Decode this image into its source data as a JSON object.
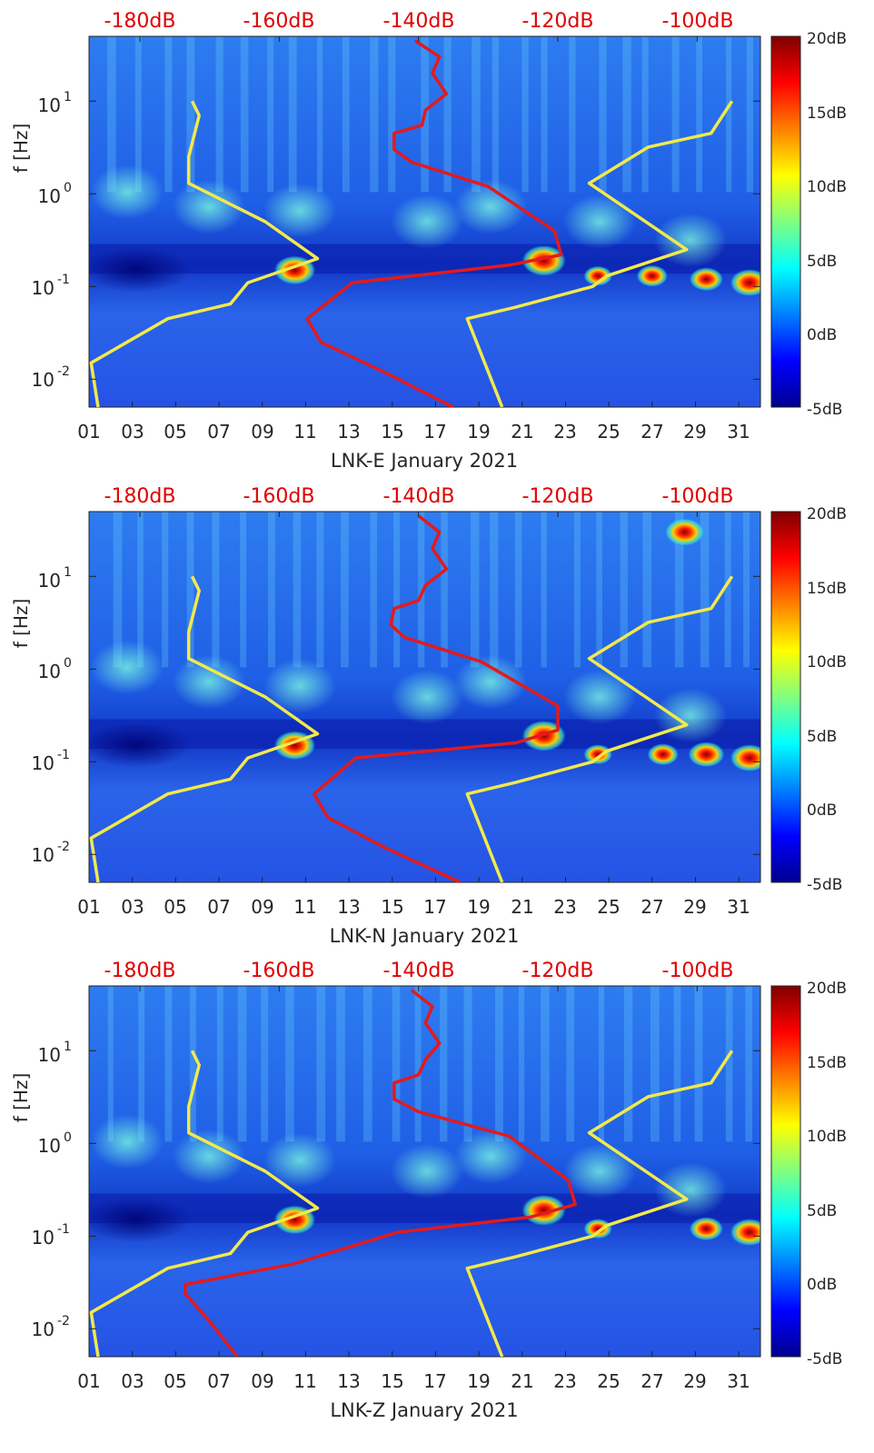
{
  "figure": {
    "colorbar_labels": [
      "20dB",
      "15dB",
      "10dB",
      "5dB",
      "0dB",
      "-5dB"
    ]
  },
  "colors": {
    "red_curve": "#e31a1c",
    "yellow_curve": "#f2e94b",
    "top_axis_text": "#e00000",
    "background": "#2a5fe8"
  },
  "chart_data": [
    {
      "type": "heatmap",
      "title": "LNK-E January 2021",
      "xlabel": "LNK-E January 2021",
      "ylabel": "f [Hz]",
      "x_ticks": [
        "01",
        "03",
        "05",
        "07",
        "09",
        "11",
        "13",
        "15",
        "17",
        "19",
        "21",
        "23",
        "25",
        "27",
        "29",
        "31"
      ],
      "y_ticks": [
        "10^-2",
        "10^-1",
        "10^0",
        "10^1"
      ],
      "top_ticks": [
        "-180dB",
        "-160dB",
        "-140dB",
        "-120dB",
        "-100dB"
      ],
      "colorbar": {
        "min": -5,
        "max": 20,
        "unit": "dB",
        "ticks": [
          "20dB",
          "15dB",
          "10dB",
          "5dB",
          "0dB",
          "-5dB"
        ]
      },
      "xlim": [
        1,
        32
      ],
      "ylim": [
        0.005,
        50
      ],
      "hot_spots": [
        {
          "day": 10.5,
          "f": 0.15,
          "dB": 19
        },
        {
          "day": 22.0,
          "f": 0.19,
          "dB": 20
        },
        {
          "day": 24.5,
          "f": 0.13,
          "dB": 14
        },
        {
          "day": 27.0,
          "f": 0.13,
          "dB": 15
        },
        {
          "day": 29.5,
          "f": 0.12,
          "dB": 16
        },
        {
          "day": 31.5,
          "f": 0.11,
          "dB": 18
        }
      ],
      "series": [
        {
          "name": "red-level-curve",
          "color": "#e31a1c",
          "x_db": [
            -140.5,
            -137,
            -138,
            -136,
            -139,
            -139.5,
            -143.5,
            -143.5,
            -141,
            -130,
            -120.5,
            -119.5,
            -127,
            -149.5,
            -156,
            -154,
            -145,
            -135
          ],
          "f": [
            45,
            30,
            20,
            12,
            8,
            5.5,
            4.5,
            3.0,
            2.2,
            1.2,
            0.4,
            0.22,
            0.17,
            0.11,
            0.045,
            0.025,
            0.012,
            0.005
          ]
        },
        {
          "name": "yellow-reference-curve",
          "color": "#f2e94b",
          "x_db": [
            -172.5,
            -171.5,
            -173,
            -173,
            -162,
            -154.5,
            -164.5,
            -167,
            -176,
            -187,
            -186
          ],
          "f": [
            10,
            7,
            2.5,
            1.3,
            0.5,
            0.2,
            0.11,
            0.065,
            0.045,
            0.015,
            0.005
          ]
        },
        {
          "name": "yellow-reference-curve-2",
          "color": "#f2e94b",
          "x_db": [
            -95,
            -98,
            -107,
            -115.5,
            -101.5,
            -113,
            -115,
            -126,
            -133,
            -128
          ],
          "f": [
            10,
            4.5,
            3.2,
            1.3,
            0.25,
            0.13,
            0.1,
            0.06,
            0.045,
            0.005
          ]
        }
      ]
    },
    {
      "type": "heatmap",
      "title": "LNK-N January 2021",
      "xlabel": "LNK-N January 2021",
      "ylabel": "f [Hz]",
      "x_ticks": [
        "01",
        "03",
        "05",
        "07",
        "09",
        "11",
        "13",
        "15",
        "17",
        "19",
        "21",
        "23",
        "25",
        "27",
        "29",
        "31"
      ],
      "y_ticks": [
        "10^-2",
        "10^-1",
        "10^0",
        "10^1"
      ],
      "top_ticks": [
        "-180dB",
        "-160dB",
        "-140dB",
        "-120dB",
        "-100dB"
      ],
      "colorbar": {
        "min": -5,
        "max": 20,
        "unit": "dB",
        "ticks": [
          "20dB",
          "15dB",
          "10dB",
          "5dB",
          "0dB",
          "-5dB"
        ]
      },
      "xlim": [
        1,
        32
      ],
      "ylim": [
        0.005,
        50
      ],
      "hot_spots": [
        {
          "day": 10.5,
          "f": 0.15,
          "dB": 19
        },
        {
          "day": 22.0,
          "f": 0.19,
          "dB": 20
        },
        {
          "day": 24.5,
          "f": 0.12,
          "dB": 14
        },
        {
          "day": 27.5,
          "f": 0.12,
          "dB": 15
        },
        {
          "day": 29.5,
          "f": 0.12,
          "dB": 17
        },
        {
          "day": 31.5,
          "f": 0.11,
          "dB": 18
        },
        {
          "day": 28.5,
          "f": 30,
          "dB": 18
        }
      ],
      "series": [
        {
          "name": "red-level-curve",
          "color": "#e31a1c",
          "x_db": [
            -140,
            -137,
            -138,
            -136,
            -139,
            -140,
            -143.5,
            -144,
            -142,
            -131,
            -120,
            -120,
            -126,
            -149,
            -155,
            -153,
            -145,
            -134
          ],
          "f": [
            45,
            30,
            20,
            12,
            8,
            5.5,
            4.5,
            3.0,
            2.2,
            1.2,
            0.4,
            0.22,
            0.16,
            0.11,
            0.045,
            0.025,
            0.012,
            0.005
          ]
        },
        {
          "name": "yellow-reference-curve",
          "color": "#f2e94b",
          "x_db": [
            -172.5,
            -171.5,
            -173,
            -173,
            -162,
            -154.5,
            -164.5,
            -167,
            -176,
            -187,
            -186
          ],
          "f": [
            10,
            7,
            2.5,
            1.3,
            0.5,
            0.2,
            0.11,
            0.065,
            0.045,
            0.015,
            0.005
          ]
        },
        {
          "name": "yellow-reference-curve-2",
          "color": "#f2e94b",
          "x_db": [
            -95,
            -98,
            -107,
            -115.5,
            -101.5,
            -113,
            -115,
            -126,
            -133,
            -128
          ],
          "f": [
            10,
            4.5,
            3.2,
            1.3,
            0.25,
            0.13,
            0.1,
            0.06,
            0.045,
            0.005
          ]
        }
      ]
    },
    {
      "type": "heatmap",
      "title": "LNK-Z January 2021",
      "xlabel": "LNK-Z January 2021",
      "ylabel": "f [Hz]",
      "x_ticks": [
        "01",
        "03",
        "05",
        "07",
        "09",
        "11",
        "13",
        "15",
        "17",
        "19",
        "21",
        "23",
        "25",
        "27",
        "29",
        "31"
      ],
      "y_ticks": [
        "10^-2",
        "10^-1",
        "10^0",
        "10^1"
      ],
      "top_ticks": [
        "-180dB",
        "-160dB",
        "-140dB",
        "-120dB",
        "-100dB"
      ],
      "colorbar": {
        "min": -5,
        "max": 20,
        "unit": "dB",
        "ticks": [
          "20dB",
          "15dB",
          "10dB",
          "5dB",
          "0dB",
          "-5dB"
        ]
      },
      "xlim": [
        1,
        32
      ],
      "ylim": [
        0.005,
        50
      ],
      "hot_spots": [
        {
          "day": 10.5,
          "f": 0.15,
          "dB": 19
        },
        {
          "day": 22.0,
          "f": 0.19,
          "dB": 20
        },
        {
          "day": 24.5,
          "f": 0.12,
          "dB": 14
        },
        {
          "day": 29.5,
          "f": 0.12,
          "dB": 16
        },
        {
          "day": 31.5,
          "f": 0.11,
          "dB": 18
        }
      ],
      "series": [
        {
          "name": "red-level-curve",
          "color": "#e31a1c",
          "x_db": [
            -141,
            -138,
            -139,
            -137,
            -139,
            -140,
            -143.5,
            -143.5,
            -140,
            -127,
            -118.5,
            -117.5,
            -124,
            -143,
            -158,
            -173.5,
            -173.5,
            -170,
            -166
          ],
          "f": [
            45,
            30,
            20,
            12,
            8,
            5.5,
            4.5,
            3.0,
            2.2,
            1.2,
            0.4,
            0.22,
            0.16,
            0.11,
            0.05,
            0.03,
            0.024,
            0.012,
            0.005
          ]
        },
        {
          "name": "yellow-reference-curve",
          "color": "#f2e94b",
          "x_db": [
            -172.5,
            -171.5,
            -173,
            -173,
            -162,
            -154.5,
            -164.5,
            -167,
            -176,
            -187,
            -186
          ],
          "f": [
            10,
            7,
            2.5,
            1.3,
            0.5,
            0.2,
            0.11,
            0.065,
            0.045,
            0.015,
            0.005
          ]
        },
        {
          "name": "yellow-reference-curve-2",
          "color": "#f2e94b",
          "x_db": [
            -95,
            -98,
            -107,
            -115.5,
            -101.5,
            -113,
            -115,
            -126,
            -133,
            -128
          ],
          "f": [
            10,
            4.5,
            3.2,
            1.3,
            0.25,
            0.13,
            0.1,
            0.06,
            0.045,
            0.005
          ]
        }
      ]
    }
  ]
}
